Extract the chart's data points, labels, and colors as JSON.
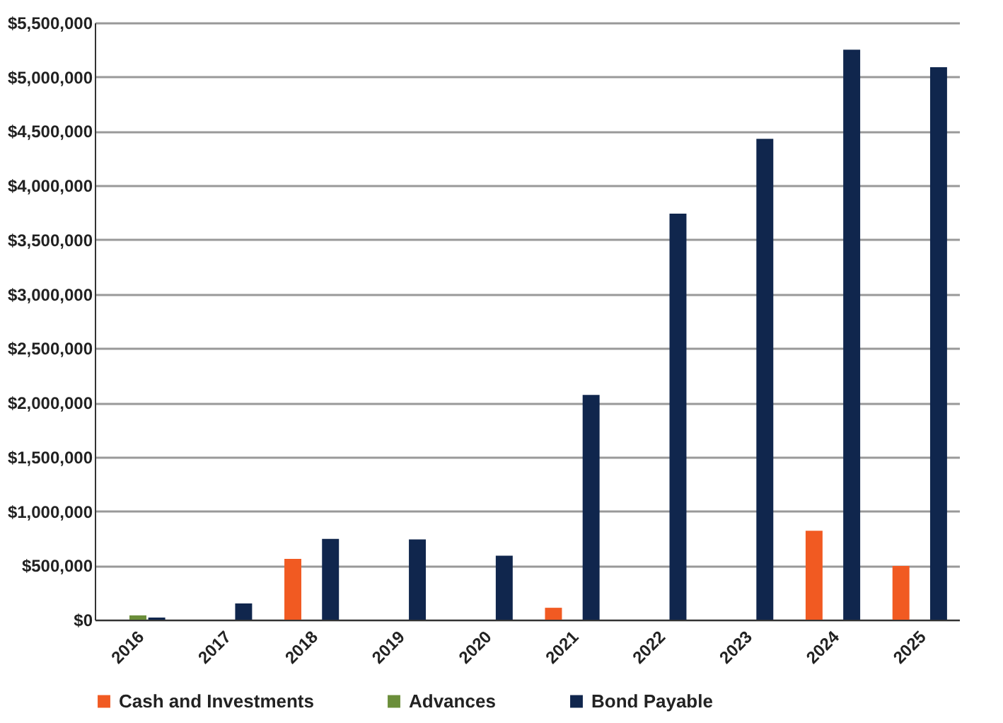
{
  "chart_data": {
    "type": "bar",
    "categories": [
      "2016",
      "2017",
      "2018",
      "2019",
      "2020",
      "2021",
      "2022",
      "2023",
      "2024",
      "2025"
    ],
    "series": [
      {
        "name": "Cash and Investments",
        "color": "#f15a22",
        "values": [
          0,
          0,
          560000,
          0,
          0,
          110000,
          0,
          0,
          820000,
          495000
        ]
      },
      {
        "name": "Advances",
        "color": "#6b8e3a",
        "values": [
          40000,
          0,
          0,
          0,
          0,
          0,
          0,
          0,
          0,
          0
        ]
      },
      {
        "name": "Bond Payable",
        "color": "#10264d",
        "values": [
          20000,
          150000,
          745000,
          740000,
          590000,
          2070000,
          3740000,
          4430000,
          5250000,
          5090000
        ]
      }
    ],
    "ylim": [
      0,
      5500000
    ],
    "yticks": [
      {
        "value": 0,
        "label": "$0"
      },
      {
        "value": 500000,
        "label": "$500,000"
      },
      {
        "value": 1000000,
        "label": "$1,000,000"
      },
      {
        "value": 1500000,
        "label": "$1,500,000"
      },
      {
        "value": 2000000,
        "label": "$2,000,000"
      },
      {
        "value": 2500000,
        "label": "$2,500,000"
      },
      {
        "value": 3000000,
        "label": "$3,000,000"
      },
      {
        "value": 3500000,
        "label": "$3,500,000"
      },
      {
        "value": 4000000,
        "label": "$4,000,000"
      },
      {
        "value": 4500000,
        "label": "$4,500,000"
      },
      {
        "value": 5000000,
        "label": "$5,000,000"
      },
      {
        "value": 5500000,
        "label": "$5,500,000"
      }
    ],
    "grid": "y",
    "legend": "bottom"
  }
}
